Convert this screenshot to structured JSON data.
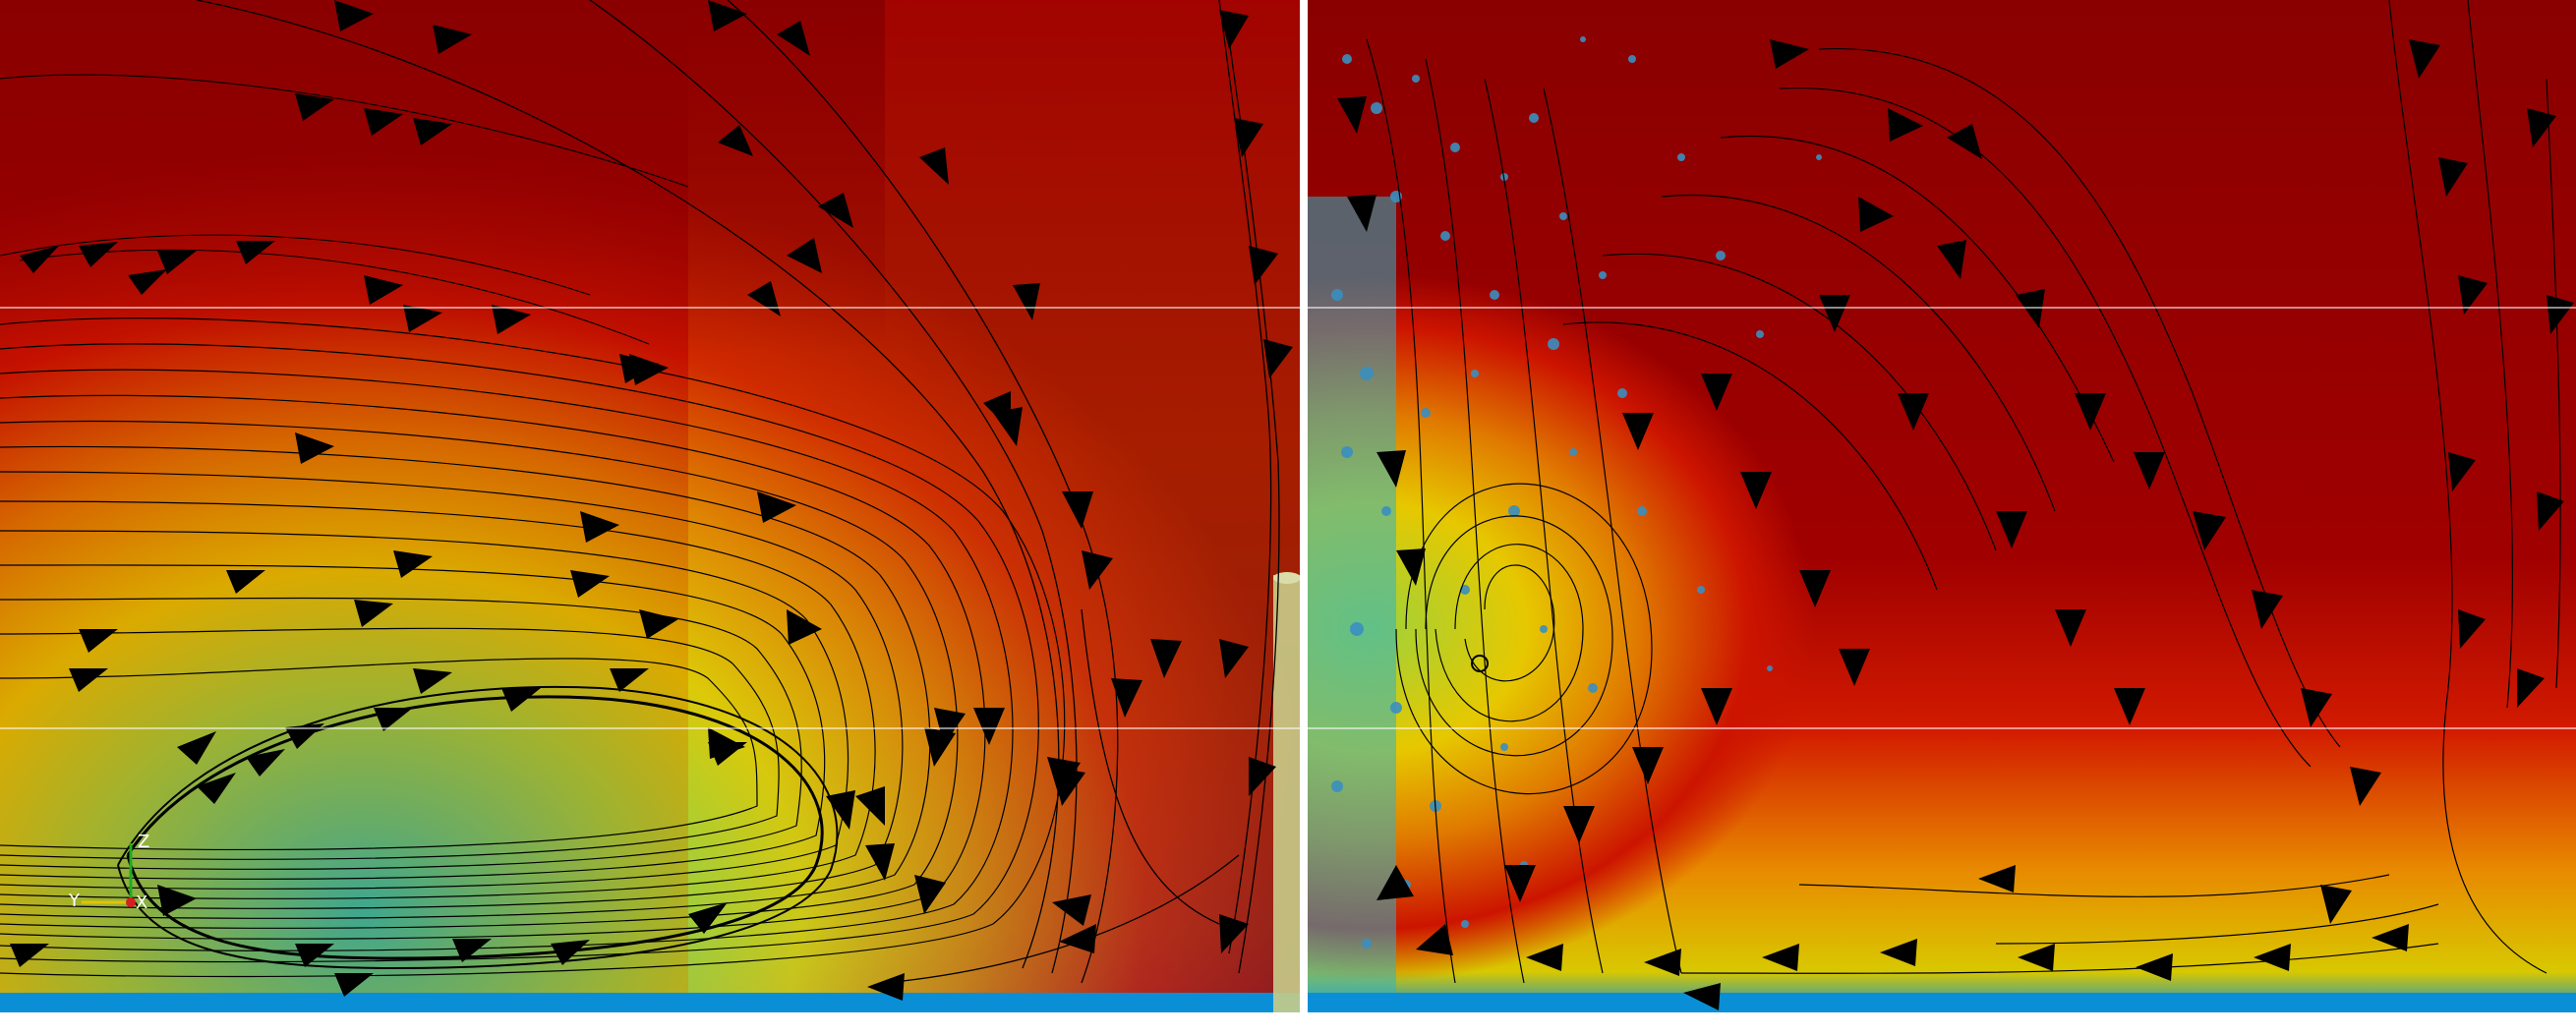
{
  "figure": {
    "panels": [
      {
        "name": "left",
        "description_visible": false
      },
      {
        "name": "right",
        "description_visible": false
      }
    ],
    "colormap": [
      "#0a8fd6",
      "#2fc4a8",
      "#9fd23a",
      "#e6c800",
      "#e07a00",
      "#cc1400",
      "#9a0000",
      "#7a0000"
    ],
    "axes_triad": {
      "z_label": "Z",
      "y_label": "Y",
      "x_label": "X",
      "z_color": "#22aa22",
      "y_color": "#e6c200",
      "x_color": "#d62020"
    },
    "streamline_color": "#000000",
    "particle_color": "#3a8fc0"
  }
}
